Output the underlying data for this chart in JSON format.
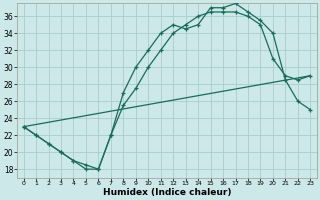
{
  "xlabel": "Humidex (Indice chaleur)",
  "ylabel": "",
  "background_color": "#cce8e8",
  "grid_color": "#aacccc",
  "line_color": "#1a6b5a",
  "xlim": [
    -0.5,
    23.5
  ],
  "ylim": [
    17.0,
    37.5
  ],
  "yticks": [
    18,
    20,
    22,
    24,
    26,
    28,
    30,
    32,
    34,
    36
  ],
  "xticks": [
    0,
    1,
    2,
    3,
    4,
    5,
    6,
    7,
    8,
    9,
    10,
    11,
    12,
    13,
    14,
    15,
    16,
    17,
    18,
    19,
    20,
    21,
    22,
    23
  ],
  "line1_x": [
    0,
    1,
    2,
    3,
    4,
    5,
    6,
    7,
    8,
    9,
    10,
    11,
    12,
    13,
    14,
    15,
    16,
    17,
    18,
    19,
    20,
    21,
    22,
    23
  ],
  "line1_y": [
    23.0,
    22.0,
    21.0,
    20.0,
    19.0,
    18.5,
    18.0,
    22.0,
    25.5,
    27.5,
    30.0,
    32.0,
    34.0,
    35.0,
    36.0,
    36.5,
    36.5,
    36.5,
    36.0,
    35.0,
    31.0,
    29.0,
    28.5,
    29.0
  ],
  "line2_x": [
    0,
    1,
    2,
    3,
    4,
    5,
    6,
    7,
    8,
    9,
    10,
    11,
    12,
    13,
    14,
    15,
    16,
    17,
    18,
    19,
    20,
    21,
    22,
    23
  ],
  "line2_y": [
    23.0,
    22.0,
    21.0,
    20.0,
    19.0,
    18.0,
    18.0,
    22.0,
    27.0,
    30.0,
    32.0,
    34.0,
    35.0,
    34.5,
    35.0,
    37.0,
    37.0,
    37.5,
    36.5,
    35.5,
    34.0,
    28.5,
    26.0,
    25.0
  ],
  "line3_x": [
    0,
    23
  ],
  "line3_y": [
    23.0,
    29.0
  ]
}
